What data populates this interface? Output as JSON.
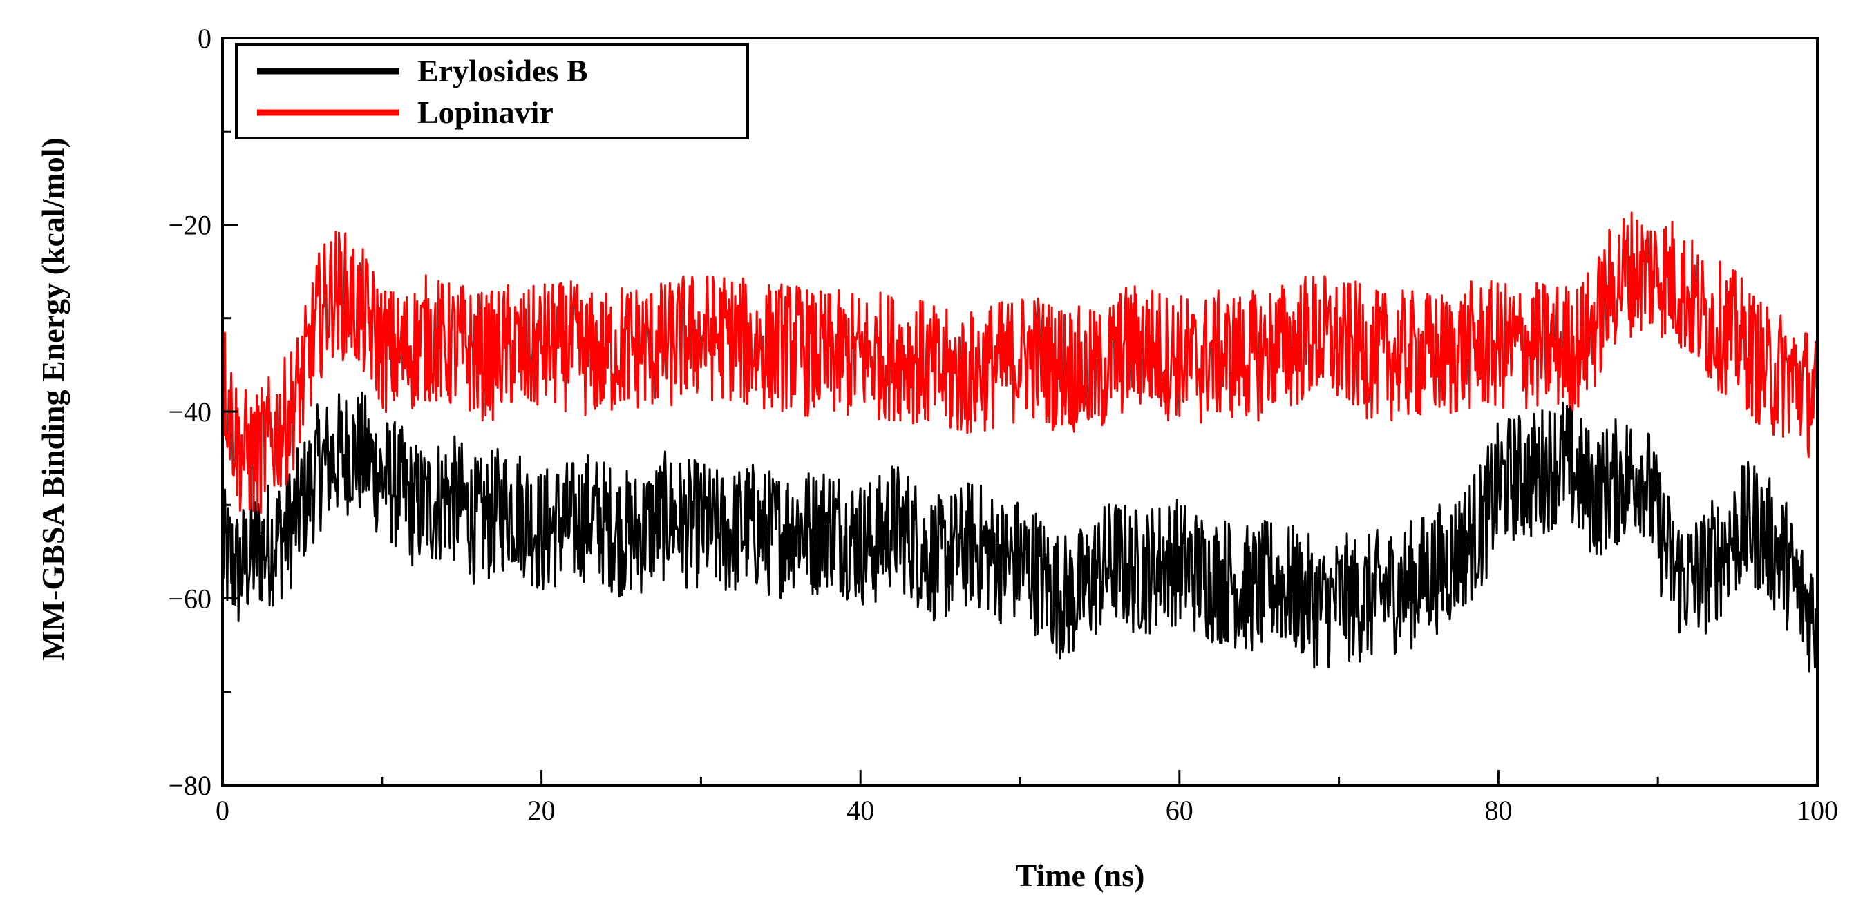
{
  "chart_data": {
    "type": "line",
    "title": "",
    "xlabel": "Time (ns)",
    "ylabel": "MM-GBSA Binding Energy (kcal/mol)",
    "xlim": [
      0,
      100
    ],
    "ylim": [
      -80,
      0
    ],
    "x_ticks": [
      0,
      20,
      40,
      60,
      80,
      100
    ],
    "x_tick_labels": [
      "0",
      "20",
      "40",
      "60",
      "80",
      "100"
    ],
    "y_ticks": [
      0,
      -20,
      -40,
      -60,
      -80
    ],
    "y_tick_labels": [
      "0",
      "−20",
      "−40",
      "−60",
      "−80"
    ],
    "grid": false,
    "legend_position": "top-left",
    "x": [
      0,
      1,
      2,
      3,
      4,
      5,
      6,
      7,
      8,
      9,
      10,
      11,
      12,
      13,
      14,
      15,
      16,
      17,
      18,
      19,
      20,
      21,
      22,
      23,
      24,
      25,
      26,
      27,
      28,
      29,
      30,
      31,
      32,
      33,
      34,
      35,
      36,
      37,
      38,
      39,
      40,
      41,
      42,
      43,
      44,
      45,
      46,
      47,
      48,
      49,
      50,
      51,
      52,
      53,
      54,
      55,
      56,
      57,
      58,
      59,
      60,
      61,
      62,
      63,
      64,
      65,
      66,
      67,
      68,
      69,
      70,
      71,
      72,
      73,
      74,
      75,
      76,
      77,
      78,
      79,
      80,
      81,
      82,
      83,
      84,
      85,
      86,
      87,
      88,
      89,
      90,
      91,
      92,
      93,
      94,
      95,
      96,
      97,
      98,
      99,
      100
    ],
    "series": [
      {
        "name": "Erylosides B",
        "color": "#000000",
        "values": [
          -55,
          -57,
          -55,
          -54,
          -53,
          -50,
          -46,
          -45,
          -44,
          -45,
          -47,
          -48,
          -50,
          -50,
          -49,
          -50,
          -52,
          -51,
          -50,
          -51,
          -53,
          -52,
          -52,
          -51,
          -52,
          -53,
          -53,
          -52,
          -51,
          -52,
          -52,
          -53,
          -53,
          -52,
          -53,
          -53,
          -52,
          -53,
          -52,
          -53,
          -54,
          -54,
          -52,
          -53,
          -55,
          -56,
          -55,
          -54,
          -55,
          -56,
          -56,
          -57,
          -59,
          -60,
          -59,
          -57,
          -56,
          -57,
          -57,
          -56,
          -56,
          -57,
          -58,
          -58,
          -59,
          -59,
          -58,
          -59,
          -60,
          -61,
          -60,
          -60,
          -60,
          -59,
          -59,
          -58,
          -57,
          -56,
          -54,
          -52,
          -48,
          -47,
          -47,
          -46,
          -45,
          -47,
          -49,
          -48,
          -47,
          -46,
          -52,
          -57,
          -58,
          -57,
          -55,
          -53,
          -52,
          -54,
          -56,
          -60,
          -62
        ]
      },
      {
        "name": "Lopinavir",
        "color": "#ff0000",
        "values": [
          -36,
          -44,
          -45,
          -43,
          -41,
          -37,
          -30,
          -27,
          -28,
          -30,
          -33,
          -34,
          -33,
          -32,
          -33,
          -33,
          -34,
          -34,
          -33,
          -34,
          -33,
          -33,
          -33,
          -34,
          -34,
          -33,
          -33,
          -33,
          -33,
          -32,
          -32,
          -32,
          -32,
          -33,
          -33,
          -33,
          -33,
          -34,
          -34,
          -34,
          -34,
          -34,
          -34,
          -34,
          -35,
          -36,
          -36,
          -36,
          -35,
          -35,
          -34,
          -34,
          -35,
          -35,
          -36,
          -36,
          -34,
          -33,
          -33,
          -34,
          -34,
          -35,
          -34,
          -34,
          -34,
          -34,
          -33,
          -33,
          -32,
          -32,
          -33,
          -33,
          -34,
          -34,
          -34,
          -34,
          -34,
          -34,
          -33,
          -33,
          -33,
          -33,
          -33,
          -33,
          -33,
          -33,
          -31,
          -27,
          -25,
          -25,
          -25,
          -26,
          -28,
          -30,
          -31,
          -32,
          -34,
          -36,
          -36,
          -37,
          -39
        ]
      }
    ]
  },
  "colors": {
    "background": "#ffffff",
    "axis": "#000000"
  }
}
